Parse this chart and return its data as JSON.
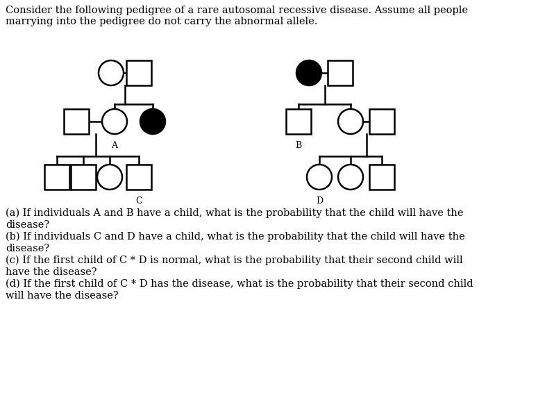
{
  "title_text": "Consider the following pedigree of a rare autosomal recessive disease. Assume all people\nmarrying into the pedigree do not carry the abnormal allele.",
  "questions": [
    "(a) If individuals A and B have a child, what is the probability that the child will have the disease?",
    "(b) If individuals C and D have a child, what is the probability that the child will have the disease?",
    "(c) If the first child of C * D is normal, what is the probability that their second child will have the disease?",
    "(d) If the first child of C * D has the disease, what is the probability that their second child will have the disease?"
  ],
  "bg_color": "#ffffff",
  "text_color": "#000000",
  "font_size": 10.5,
  "label_font_size": 9,
  "lw": 1.8
}
